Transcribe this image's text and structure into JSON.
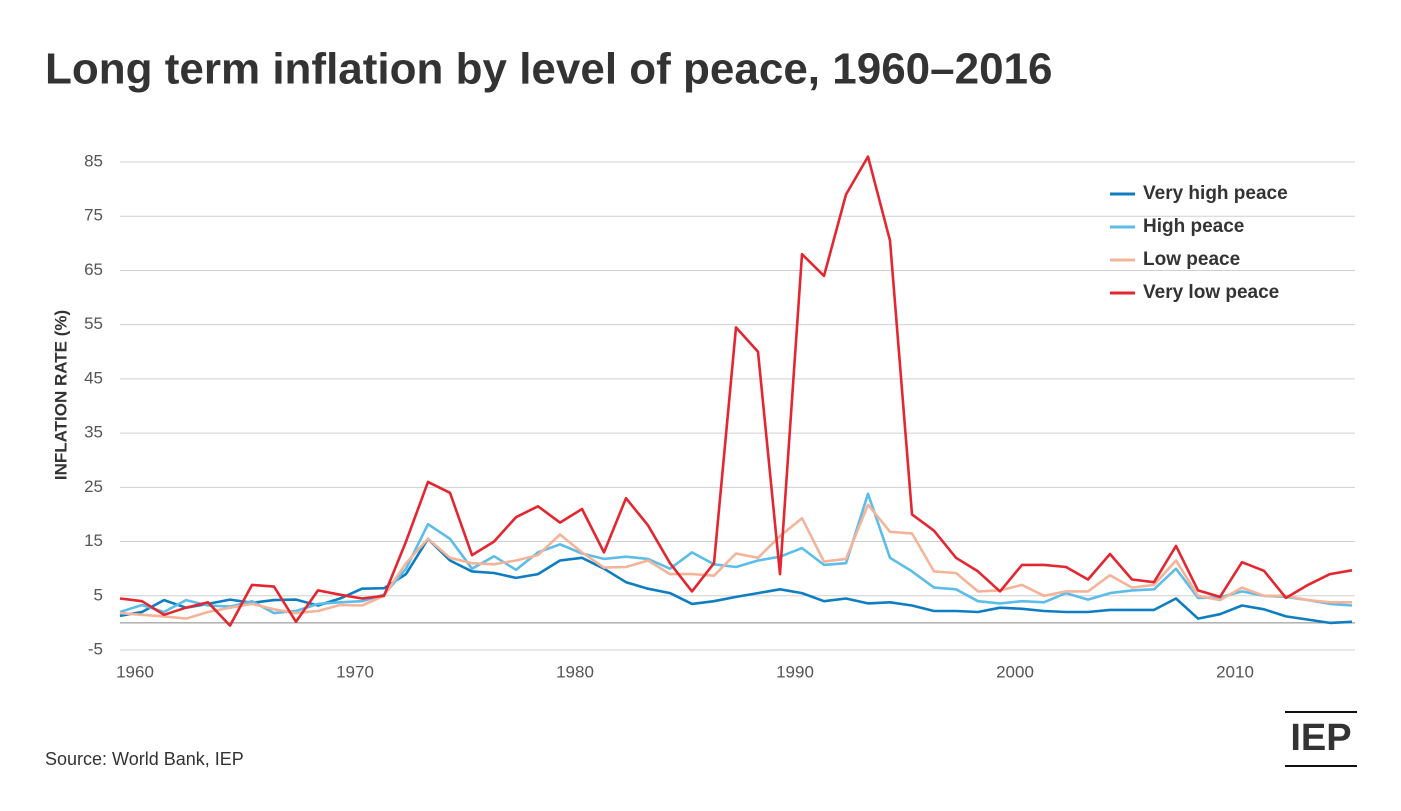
{
  "chart_data": {
    "type": "line",
    "title": "Long term inflation by level of peace, 1960–2016",
    "y_label": "INFLATION RATE (%)",
    "source": "Source: World Bank, IEP",
    "logo": "IEP",
    "x": [
      1960,
      1961,
      1962,
      1963,
      1964,
      1965,
      1966,
      1967,
      1968,
      1969,
      1970,
      1971,
      1972,
      1973,
      1974,
      1975,
      1976,
      1977,
      1978,
      1979,
      1980,
      1981,
      1982,
      1983,
      1984,
      1985,
      1986,
      1987,
      1988,
      1989,
      1990,
      1991,
      1992,
      1993,
      1994,
      1995,
      1996,
      1997,
      1998,
      1999,
      2000,
      2001,
      2002,
      2003,
      2004,
      2005,
      2006,
      2007,
      2008,
      2009,
      2010,
      2011,
      2012,
      2013,
      2014,
      2015,
      2016
    ],
    "xlim": [
      1960,
      2016
    ],
    "xticks": [
      1960,
      1970,
      1980,
      1990,
      2000,
      2010
    ],
    "ylim": [
      -5,
      85
    ],
    "yticks": [
      -5,
      5,
      15,
      25,
      35,
      45,
      55,
      65,
      75,
      85
    ],
    "grid": true,
    "legend": "top-right",
    "series": [
      {
        "name": "Very high peace",
        "color": "#0e7dc2",
        "values": [
          1.3,
          2,
          4.2,
          2.8,
          3.5,
          4.3,
          3.7,
          4.2,
          4.3,
          3.2,
          4.5,
          6.3,
          6.4,
          9,
          15.5,
          11.5,
          9.5,
          9.2,
          8.3,
          9,
          11.5,
          12,
          10,
          7.5,
          6.3,
          5.5,
          3.5,
          4,
          4.8,
          5.5,
          6.2,
          5.5,
          4,
          4.5,
          3.6,
          3.8,
          3.2,
          2.2,
          2.2,
          2,
          2.8,
          2.6,
          2.2,
          2,
          2,
          2.4,
          2.4,
          2.4,
          4.5,
          0.8,
          1.6,
          3.2,
          2.5,
          1.2,
          0.6,
          0,
          0.2
        ]
      },
      {
        "name": "High peace",
        "color": "#5bbde8",
        "values": [
          2,
          3.3,
          2,
          4.2,
          3.2,
          3,
          4,
          1.8,
          2.2,
          3.5,
          3.8,
          4,
          5.2,
          10,
          18.2,
          15.5,
          10,
          12.3,
          9.8,
          13,
          14.5,
          12.8,
          11.8,
          12.2,
          11.8,
          10,
          13,
          10.8,
          10.3,
          11.5,
          12.2,
          13.8,
          10.7,
          11,
          23.8,
          12,
          9.5,
          6.5,
          6.2,
          4,
          3.6,
          4,
          3.8,
          5.5,
          4.3,
          5.5,
          6,
          6.2,
          10,
          4.6,
          4.7,
          5.8,
          5,
          4.8,
          4.2,
          3.5,
          3.2
        ]
      },
      {
        "name": "Low peace",
        "color": "#f4b49a",
        "values": [
          1.8,
          1.5,
          1.2,
          0.8,
          2,
          2.8,
          3.5,
          2.5,
          1.8,
          2.2,
          3.3,
          3.2,
          5,
          11,
          15.5,
          12,
          11,
          10.8,
          11.5,
          12.5,
          16.3,
          13,
          10.2,
          10.3,
          11.5,
          9,
          9,
          8.7,
          12.8,
          12,
          16,
          19.3,
          11.3,
          11.8,
          21.8,
          16.8,
          16.5,
          9.5,
          9.2,
          5.8,
          6,
          7,
          5,
          5.8,
          5.8,
          8.8,
          6.5,
          7,
          11.5,
          5,
          4.2,
          6.5,
          5,
          5,
          4.2,
          3.8,
          3.8
        ]
      },
      {
        "name": "Very low peace",
        "color": "#e3262f",
        "values": [
          4.5,
          4,
          1.5,
          2.8,
          3.8,
          -0.5,
          7,
          6.7,
          0.2,
          6,
          5.2,
          4.5,
          5,
          15,
          26,
          24,
          12.5,
          15,
          19.5,
          21.5,
          18.5,
          21,
          13,
          23,
          18,
          11,
          5.8,
          11,
          54.5,
          50,
          9,
          68,
          64,
          79,
          86,
          70.5,
          20,
          17,
          12,
          9.5,
          5.8,
          10.7,
          10.7,
          10.3,
          8,
          12.7,
          8,
          7.5,
          14.2,
          6,
          4.8,
          11.2,
          9.6,
          4.6,
          7,
          9,
          9.7
        ]
      }
    ]
  }
}
